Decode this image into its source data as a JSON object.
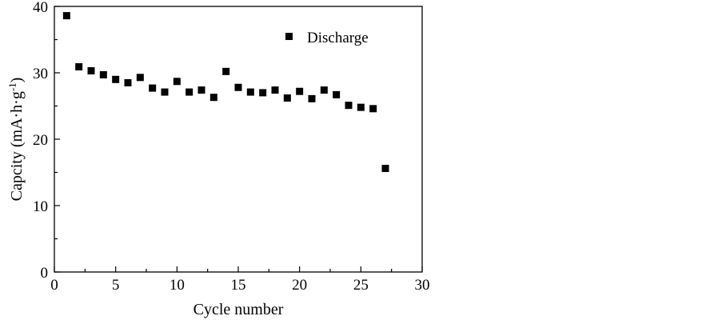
{
  "chart_data": {
    "type": "scatter",
    "xlabel": "Cycle number",
    "ylabel": {
      "main": "Capcity (mA·h·g",
      "superscript": "-1",
      "close": ")"
    },
    "xlim": [
      0,
      30
    ],
    "ylim": [
      0,
      40
    ],
    "xticks": [
      0,
      5,
      10,
      15,
      20,
      25,
      30
    ],
    "yticks": [
      0,
      10,
      20,
      30,
      40
    ],
    "grid": false,
    "legend_position": "top-right",
    "marker": "square",
    "color": "#000000",
    "series": [
      {
        "name": "Discharge",
        "x": [
          1,
          2,
          3,
          4,
          5,
          6,
          7,
          8,
          9,
          10,
          11,
          12,
          13,
          14,
          15,
          16,
          17,
          18,
          19,
          20,
          21,
          22,
          23,
          24,
          25,
          26,
          27
        ],
        "y": [
          38.6,
          30.9,
          30.3,
          29.7,
          29.0,
          28.5,
          29.3,
          27.7,
          27.1,
          28.7,
          27.1,
          27.4,
          26.3,
          30.2,
          27.8,
          27.1,
          27.0,
          27.4,
          26.2,
          27.2,
          26.1,
          27.4,
          26.7,
          25.1,
          24.8,
          24.6,
          15.6
        ]
      }
    ]
  }
}
